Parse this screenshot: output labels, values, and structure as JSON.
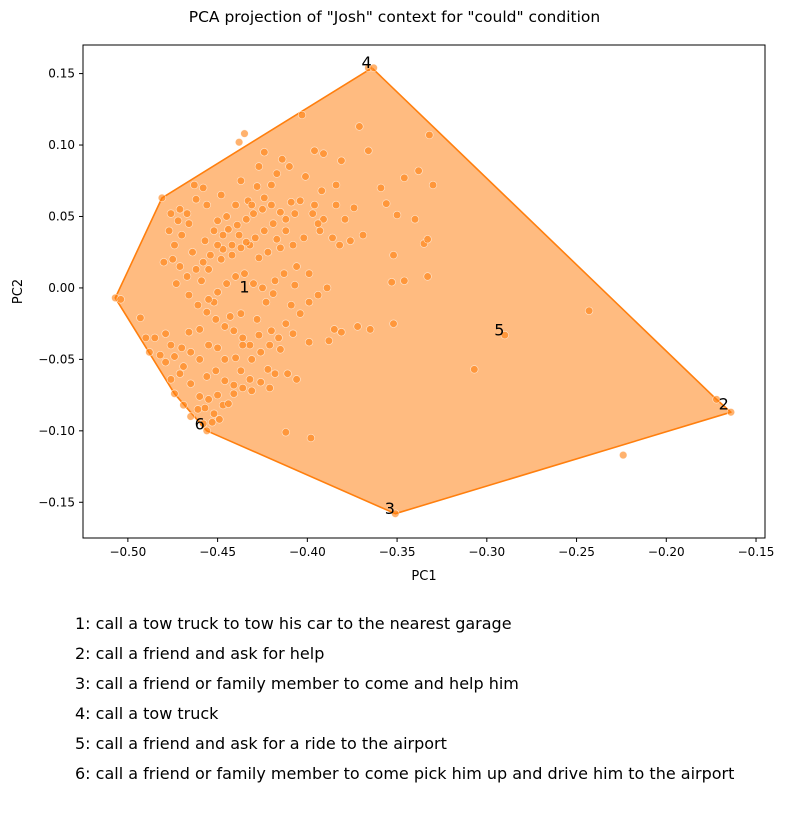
{
  "chart_data": {
    "type": "scatter",
    "title": "PCA projection of \"Josh\" context for \"could\" condition",
    "xlabel": "PC1",
    "ylabel": "PC2",
    "xlim": [
      -0.525,
      -0.145
    ],
    "ylim": [
      -0.175,
      0.17
    ],
    "xticks": [
      -0.5,
      -0.45,
      -0.4,
      -0.35,
      -0.3,
      -0.25,
      -0.2,
      -0.15
    ],
    "xtick_labels": [
      "−0.50",
      "−0.45",
      "−0.40",
      "−0.35",
      "−0.30",
      "−0.25",
      "−0.20",
      "−0.15"
    ],
    "yticks": [
      -0.15,
      -0.1,
      -0.05,
      0.0,
      0.05,
      0.1,
      0.15
    ],
    "ytick_labels": [
      "−0.15",
      "−0.10",
      "−0.05",
      "0.00",
      "0.05",
      "0.10",
      "0.15"
    ],
    "grid": false,
    "colors": {
      "points": "#ff7f0e",
      "hull_fill": "#ffbb80",
      "hull_edge": "#ff7f0e"
    },
    "hull": [
      [
        -0.507,
        -0.007
      ],
      [
        -0.481,
        0.063
      ],
      [
        -0.364,
        0.154
      ],
      [
        -0.172,
        -0.078
      ],
      [
        -0.164,
        -0.087
      ],
      [
        -0.351,
        -0.158
      ],
      [
        -0.456,
        -0.1
      ],
      [
        -0.474,
        -0.074
      ]
    ],
    "points": [
      [
        -0.507,
        -0.007
      ],
      [
        -0.504,
        -0.008
      ],
      [
        -0.481,
        0.063
      ],
      [
        -0.366,
        0.154
      ],
      [
        -0.363,
        0.154
      ],
      [
        -0.172,
        -0.078
      ],
      [
        -0.164,
        -0.087
      ],
      [
        -0.351,
        -0.158
      ],
      [
        -0.456,
        -0.1
      ],
      [
        -0.474,
        -0.074
      ],
      [
        -0.224,
        -0.117
      ],
      [
        -0.243,
        -0.016
      ],
      [
        -0.29,
        -0.033
      ],
      [
        -0.307,
        -0.057
      ],
      [
        -0.398,
        -0.105
      ],
      [
        -0.412,
        -0.101
      ],
      [
        -0.435,
        0.108
      ],
      [
        -0.438,
        0.102
      ],
      [
        -0.424,
        0.095
      ],
      [
        -0.403,
        0.121
      ],
      [
        -0.371,
        0.113
      ],
      [
        -0.366,
        0.096
      ],
      [
        -0.332,
        0.107
      ],
      [
        -0.346,
        0.077
      ],
      [
        -0.33,
        0.072
      ],
      [
        -0.338,
        0.082
      ],
      [
        -0.396,
        0.096
      ],
      [
        -0.391,
        0.094
      ],
      [
        -0.381,
        0.089
      ],
      [
        -0.384,
        0.072
      ],
      [
        -0.359,
        0.07
      ],
      [
        -0.35,
        0.051
      ],
      [
        -0.34,
        0.048
      ],
      [
        -0.335,
        0.031
      ],
      [
        -0.333,
        0.034
      ],
      [
        -0.369,
        0.037
      ],
      [
        -0.376,
        0.033
      ],
      [
        -0.393,
        0.04
      ],
      [
        -0.352,
        0.023
      ],
      [
        -0.333,
        0.008
      ],
      [
        -0.346,
        0.005
      ],
      [
        -0.353,
        0.004
      ],
      [
        -0.365,
        -0.029
      ],
      [
        -0.372,
        -0.027
      ],
      [
        -0.381,
        -0.031
      ],
      [
        -0.385,
        -0.029
      ],
      [
        -0.388,
        -0.037
      ],
      [
        -0.352,
        -0.025
      ],
      [
        -0.389,
        0.0
      ],
      [
        -0.407,
        0.002
      ],
      [
        -0.409,
        -0.012
      ],
      [
        -0.419,
        -0.004
      ],
      [
        -0.423,
        -0.01
      ],
      [
        -0.428,
        -0.022
      ],
      [
        -0.42,
        -0.03
      ],
      [
        -0.408,
        -0.032
      ],
      [
        -0.399,
        -0.038
      ],
      [
        -0.415,
        -0.043
      ],
      [
        -0.422,
        -0.057
      ],
      [
        -0.411,
        -0.06
      ],
      [
        -0.406,
        -0.064
      ],
      [
        -0.418,
        -0.06
      ],
      [
        -0.447,
        -0.082
      ],
      [
        -0.441,
        -0.074
      ],
      [
        -0.452,
        -0.088
      ],
      [
        -0.457,
        -0.084
      ],
      [
        -0.46,
        -0.076
      ],
      [
        -0.465,
        -0.067
      ],
      [
        -0.471,
        -0.06
      ],
      [
        -0.476,
        -0.064
      ],
      [
        -0.482,
        -0.047
      ],
      [
        -0.488,
        -0.045
      ],
      [
        -0.493,
        -0.021
      ],
      [
        -0.49,
        -0.035
      ],
      [
        -0.485,
        -0.035
      ],
      [
        -0.479,
        -0.032
      ],
      [
        -0.476,
        -0.04
      ],
      [
        -0.47,
        -0.042
      ],
      [
        -0.466,
        -0.031
      ],
      [
        -0.46,
        -0.029
      ],
      [
        -0.455,
        -0.04
      ],
      [
        -0.45,
        -0.042
      ],
      [
        -0.446,
        -0.05
      ],
      [
        -0.44,
        -0.049
      ],
      [
        -0.437,
        -0.058
      ],
      [
        -0.432,
        -0.064
      ],
      [
        -0.432,
        -0.04
      ],
      [
        -0.427,
        -0.033
      ],
      [
        -0.437,
        -0.018
      ],
      [
        -0.443,
        -0.02
      ],
      [
        -0.452,
        -0.01
      ],
      [
        -0.459,
        0.005
      ],
      [
        -0.455,
        0.013
      ],
      [
        -0.448,
        0.02
      ],
      [
        -0.442,
        0.023
      ],
      [
        -0.437,
        0.028
      ],
      [
        -0.432,
        0.03
      ],
      [
        -0.427,
        0.021
      ],
      [
        -0.422,
        0.025
      ],
      [
        -0.417,
        0.034
      ],
      [
        -0.412,
        0.04
      ],
      [
        -0.407,
        0.052
      ],
      [
        -0.404,
        0.061
      ],
      [
        -0.397,
        0.052
      ],
      [
        -0.391,
        0.048
      ],
      [
        -0.386,
        0.035
      ],
      [
        -0.382,
        0.03
      ],
      [
        -0.379,
        0.048
      ],
      [
        -0.374,
        0.056
      ],
      [
        -0.392,
        0.068
      ],
      [
        -0.401,
        0.078
      ],
      [
        -0.41,
        0.085
      ],
      [
        -0.42,
        0.072
      ],
      [
        -0.428,
        0.071
      ],
      [
        -0.433,
        0.061
      ],
      [
        -0.44,
        0.058
      ],
      [
        -0.445,
        0.05
      ],
      [
        -0.45,
        0.047
      ],
      [
        -0.456,
        0.058
      ],
      [
        -0.462,
        0.062
      ],
      [
        -0.467,
        0.052
      ],
      [
        -0.472,
        0.047
      ],
      [
        -0.477,
        0.04
      ],
      [
        -0.474,
        0.03
      ],
      [
        -0.47,
        0.037
      ],
      [
        -0.464,
        0.025
      ],
      [
        -0.457,
        0.033
      ],
      [
        -0.452,
        0.04
      ],
      [
        -0.447,
        0.037
      ],
      [
        -0.444,
        0.041
      ],
      [
        -0.439,
        0.044
      ],
      [
        -0.434,
        0.048
      ],
      [
        -0.43,
        0.052
      ],
      [
        -0.425,
        0.055
      ],
      [
        -0.42,
        0.058
      ],
      [
        -0.415,
        0.053
      ],
      [
        -0.412,
        0.048
      ],
      [
        -0.419,
        0.045
      ],
      [
        -0.424,
        0.04
      ],
      [
        -0.429,
        0.035
      ],
      [
        -0.434,
        0.032
      ],
      [
        -0.438,
        0.037
      ],
      [
        -0.442,
        0.03
      ],
      [
        -0.447,
        0.027
      ],
      [
        -0.45,
        0.03
      ],
      [
        -0.454,
        0.023
      ],
      [
        -0.458,
        0.018
      ],
      [
        -0.462,
        0.013
      ],
      [
        -0.467,
        0.008
      ],
      [
        -0.471,
        0.015
      ],
      [
        -0.475,
        0.02
      ],
      [
        -0.48,
        0.018
      ],
      [
        -0.473,
        0.003
      ],
      [
        -0.466,
        -0.005
      ],
      [
        -0.461,
        -0.012
      ],
      [
        -0.456,
        -0.017
      ],
      [
        -0.451,
        -0.022
      ],
      [
        -0.446,
        -0.027
      ],
      [
        -0.441,
        -0.03
      ],
      [
        -0.436,
        -0.035
      ],
      [
        -0.431,
        -0.05
      ],
      [
        -0.426,
        -0.045
      ],
      [
        -0.421,
        -0.04
      ],
      [
        -0.416,
        -0.035
      ],
      [
        -0.412,
        -0.025
      ],
      [
        -0.404,
        -0.018
      ],
      [
        -0.399,
        -0.01
      ],
      [
        -0.394,
        -0.005
      ],
      [
        -0.399,
        0.01
      ],
      [
        -0.406,
        0.015
      ],
      [
        -0.413,
        0.01
      ],
      [
        -0.418,
        0.005
      ],
      [
        -0.425,
        0.0
      ],
      [
        -0.43,
        0.003
      ],
      [
        -0.435,
        0.01
      ],
      [
        -0.44,
        0.008
      ],
      [
        -0.445,
        0.003
      ],
      [
        -0.45,
        -0.003
      ],
      [
        -0.455,
        -0.008
      ],
      [
        -0.46,
        -0.05
      ],
      [
        -0.465,
        -0.045
      ],
      [
        -0.469,
        -0.055
      ],
      [
        -0.474,
        -0.048
      ],
      [
        -0.479,
        -0.052
      ],
      [
        -0.456,
        -0.062
      ],
      [
        -0.451,
        -0.058
      ],
      [
        -0.446,
        -0.065
      ],
      [
        -0.441,
        -0.068
      ],
      [
        -0.436,
        -0.07
      ],
      [
        -0.431,
        -0.072
      ],
      [
        -0.426,
        -0.066
      ],
      [
        -0.421,
        -0.07
      ],
      [
        -0.45,
        -0.075
      ],
      [
        -0.455,
        -0.078
      ],
      [
        -0.461,
        -0.085
      ],
      [
        -0.465,
        -0.09
      ],
      [
        -0.469,
        -0.082
      ],
      [
        -0.458,
        -0.095
      ],
      [
        -0.453,
        -0.094
      ],
      [
        -0.449,
        -0.092
      ],
      [
        -0.444,
        -0.081
      ],
      [
        -0.436,
        -0.04
      ],
      [
        -0.417,
        0.08
      ],
      [
        -0.414,
        0.09
      ],
      [
        -0.427,
        0.085
      ],
      [
        -0.437,
        0.075
      ],
      [
        -0.448,
        0.065
      ],
      [
        -0.458,
        0.07
      ],
      [
        -0.463,
        0.072
      ],
      [
        -0.466,
        0.045
      ],
      [
        -0.471,
        0.055
      ],
      [
        -0.476,
        0.052
      ],
      [
        -0.384,
        0.058
      ],
      [
        -0.394,
        0.045
      ],
      [
        -0.408,
        0.03
      ],
      [
        -0.402,
        0.035
      ],
      [
        -0.415,
        0.028
      ],
      [
        -0.424,
        0.063
      ],
      [
        -0.431,
        0.058
      ],
      [
        -0.409,
        0.06
      ],
      [
        -0.396,
        0.058
      ],
      [
        -0.356,
        0.059
      ]
    ],
    "labels": [
      {
        "id": "1",
        "x": -0.435,
        "y": 0.0
      },
      {
        "id": "2",
        "x": -0.168,
        "y": -0.082
      },
      {
        "id": "3",
        "x": -0.354,
        "y": -0.155
      },
      {
        "id": "4",
        "x": -0.367,
        "y": 0.157
      },
      {
        "id": "5",
        "x": -0.293,
        "y": -0.03
      },
      {
        "id": "6",
        "x": -0.46,
        "y": -0.096
      }
    ]
  },
  "legend": [
    "1: call a tow truck to tow his car to the nearest garage",
    "2: call a friend and ask for help",
    "3: call a friend or family member to come and help him",
    "4: call a tow truck",
    "5: call a friend and ask for a ride to the airport",
    "6: call a friend or family member to come pick him up and drive him to the airport"
  ]
}
